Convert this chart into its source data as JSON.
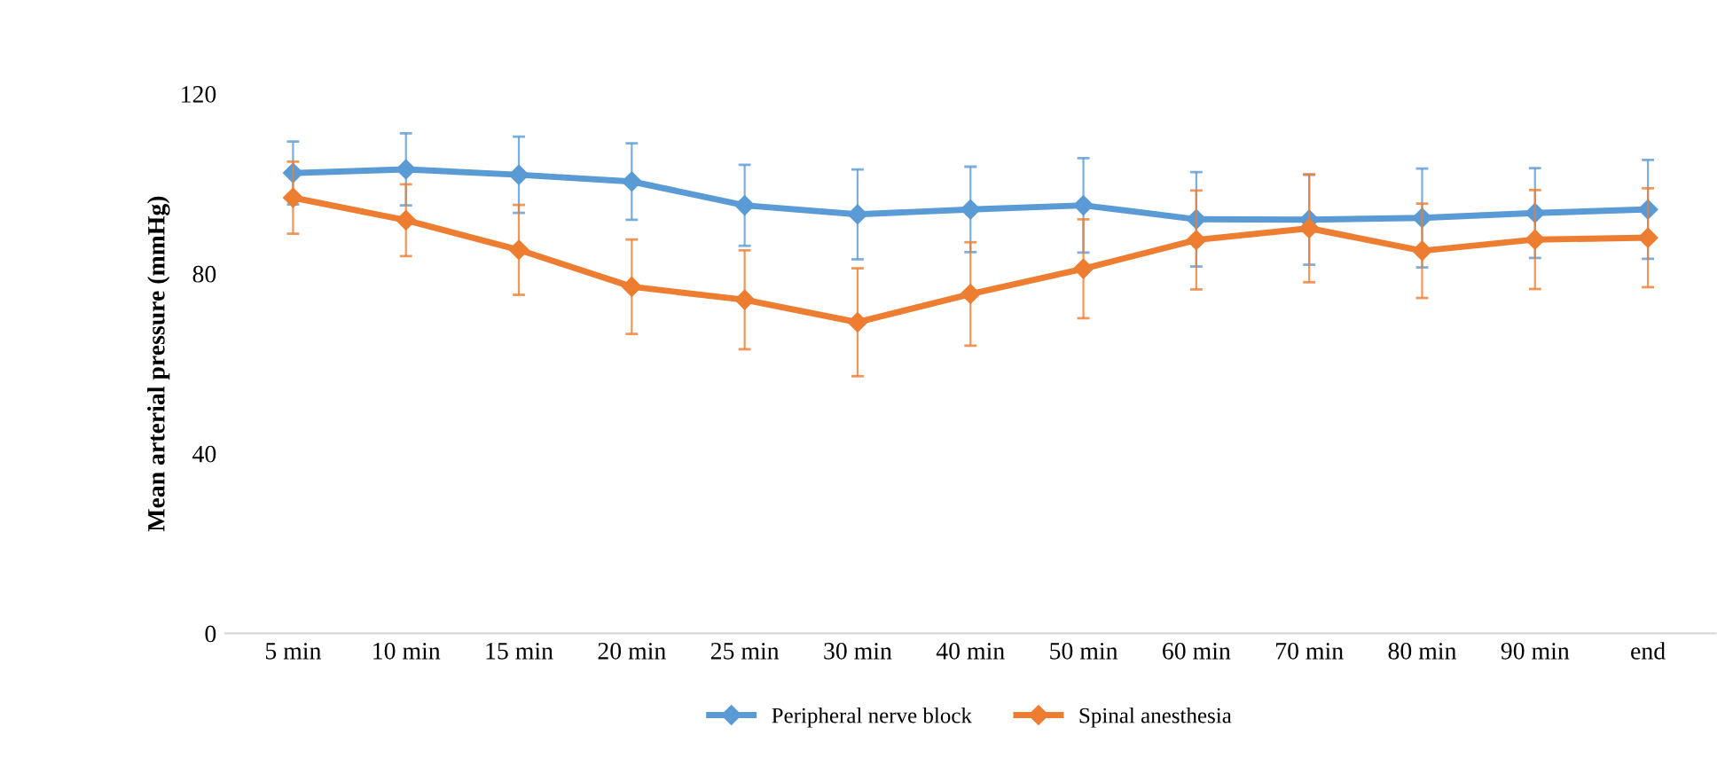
{
  "chart_data": {
    "type": "line",
    "ylabel": "Mean arterial pressure (mmHg)",
    "categories": [
      "5 min",
      "10 min",
      "15 min",
      "20 min",
      "25 min",
      "30 min",
      "40 min",
      "50 min",
      "60 min",
      "70 min",
      "80 min",
      "90 min",
      "end"
    ],
    "series": [
      {
        "name": "Peripheral nerve block",
        "color": "#5b9bd5",
        "values": [
          102.4,
          103.2,
          102,
          100.5,
          95.2,
          93.2,
          94.3,
          95.2,
          92.1,
          92,
          92.4,
          93.5,
          94.3
        ],
        "errors": [
          7,
          8,
          8.5,
          8.5,
          9,
          10,
          9.5,
          10.5,
          10.5,
          10,
          11,
          10,
          11
        ]
      },
      {
        "name": "Spinal anesthesia",
        "color": "#ed7d31",
        "values": [
          96.9,
          91.9,
          85.3,
          77.1,
          74.2,
          69.2,
          75.5,
          81.1,
          87.5,
          90.1,
          85.1,
          87.6,
          88
        ],
        "errors": [
          8,
          8,
          10,
          10.5,
          11,
          12,
          11.5,
          11,
          11,
          12,
          10.5,
          11,
          11
        ]
      }
    ],
    "ylim": [
      0,
      120
    ],
    "yticks": [
      0,
      40,
      80,
      120
    ],
    "grid": false,
    "legend": "bottom",
    "marker": "diamond",
    "line_style": "solid"
  }
}
